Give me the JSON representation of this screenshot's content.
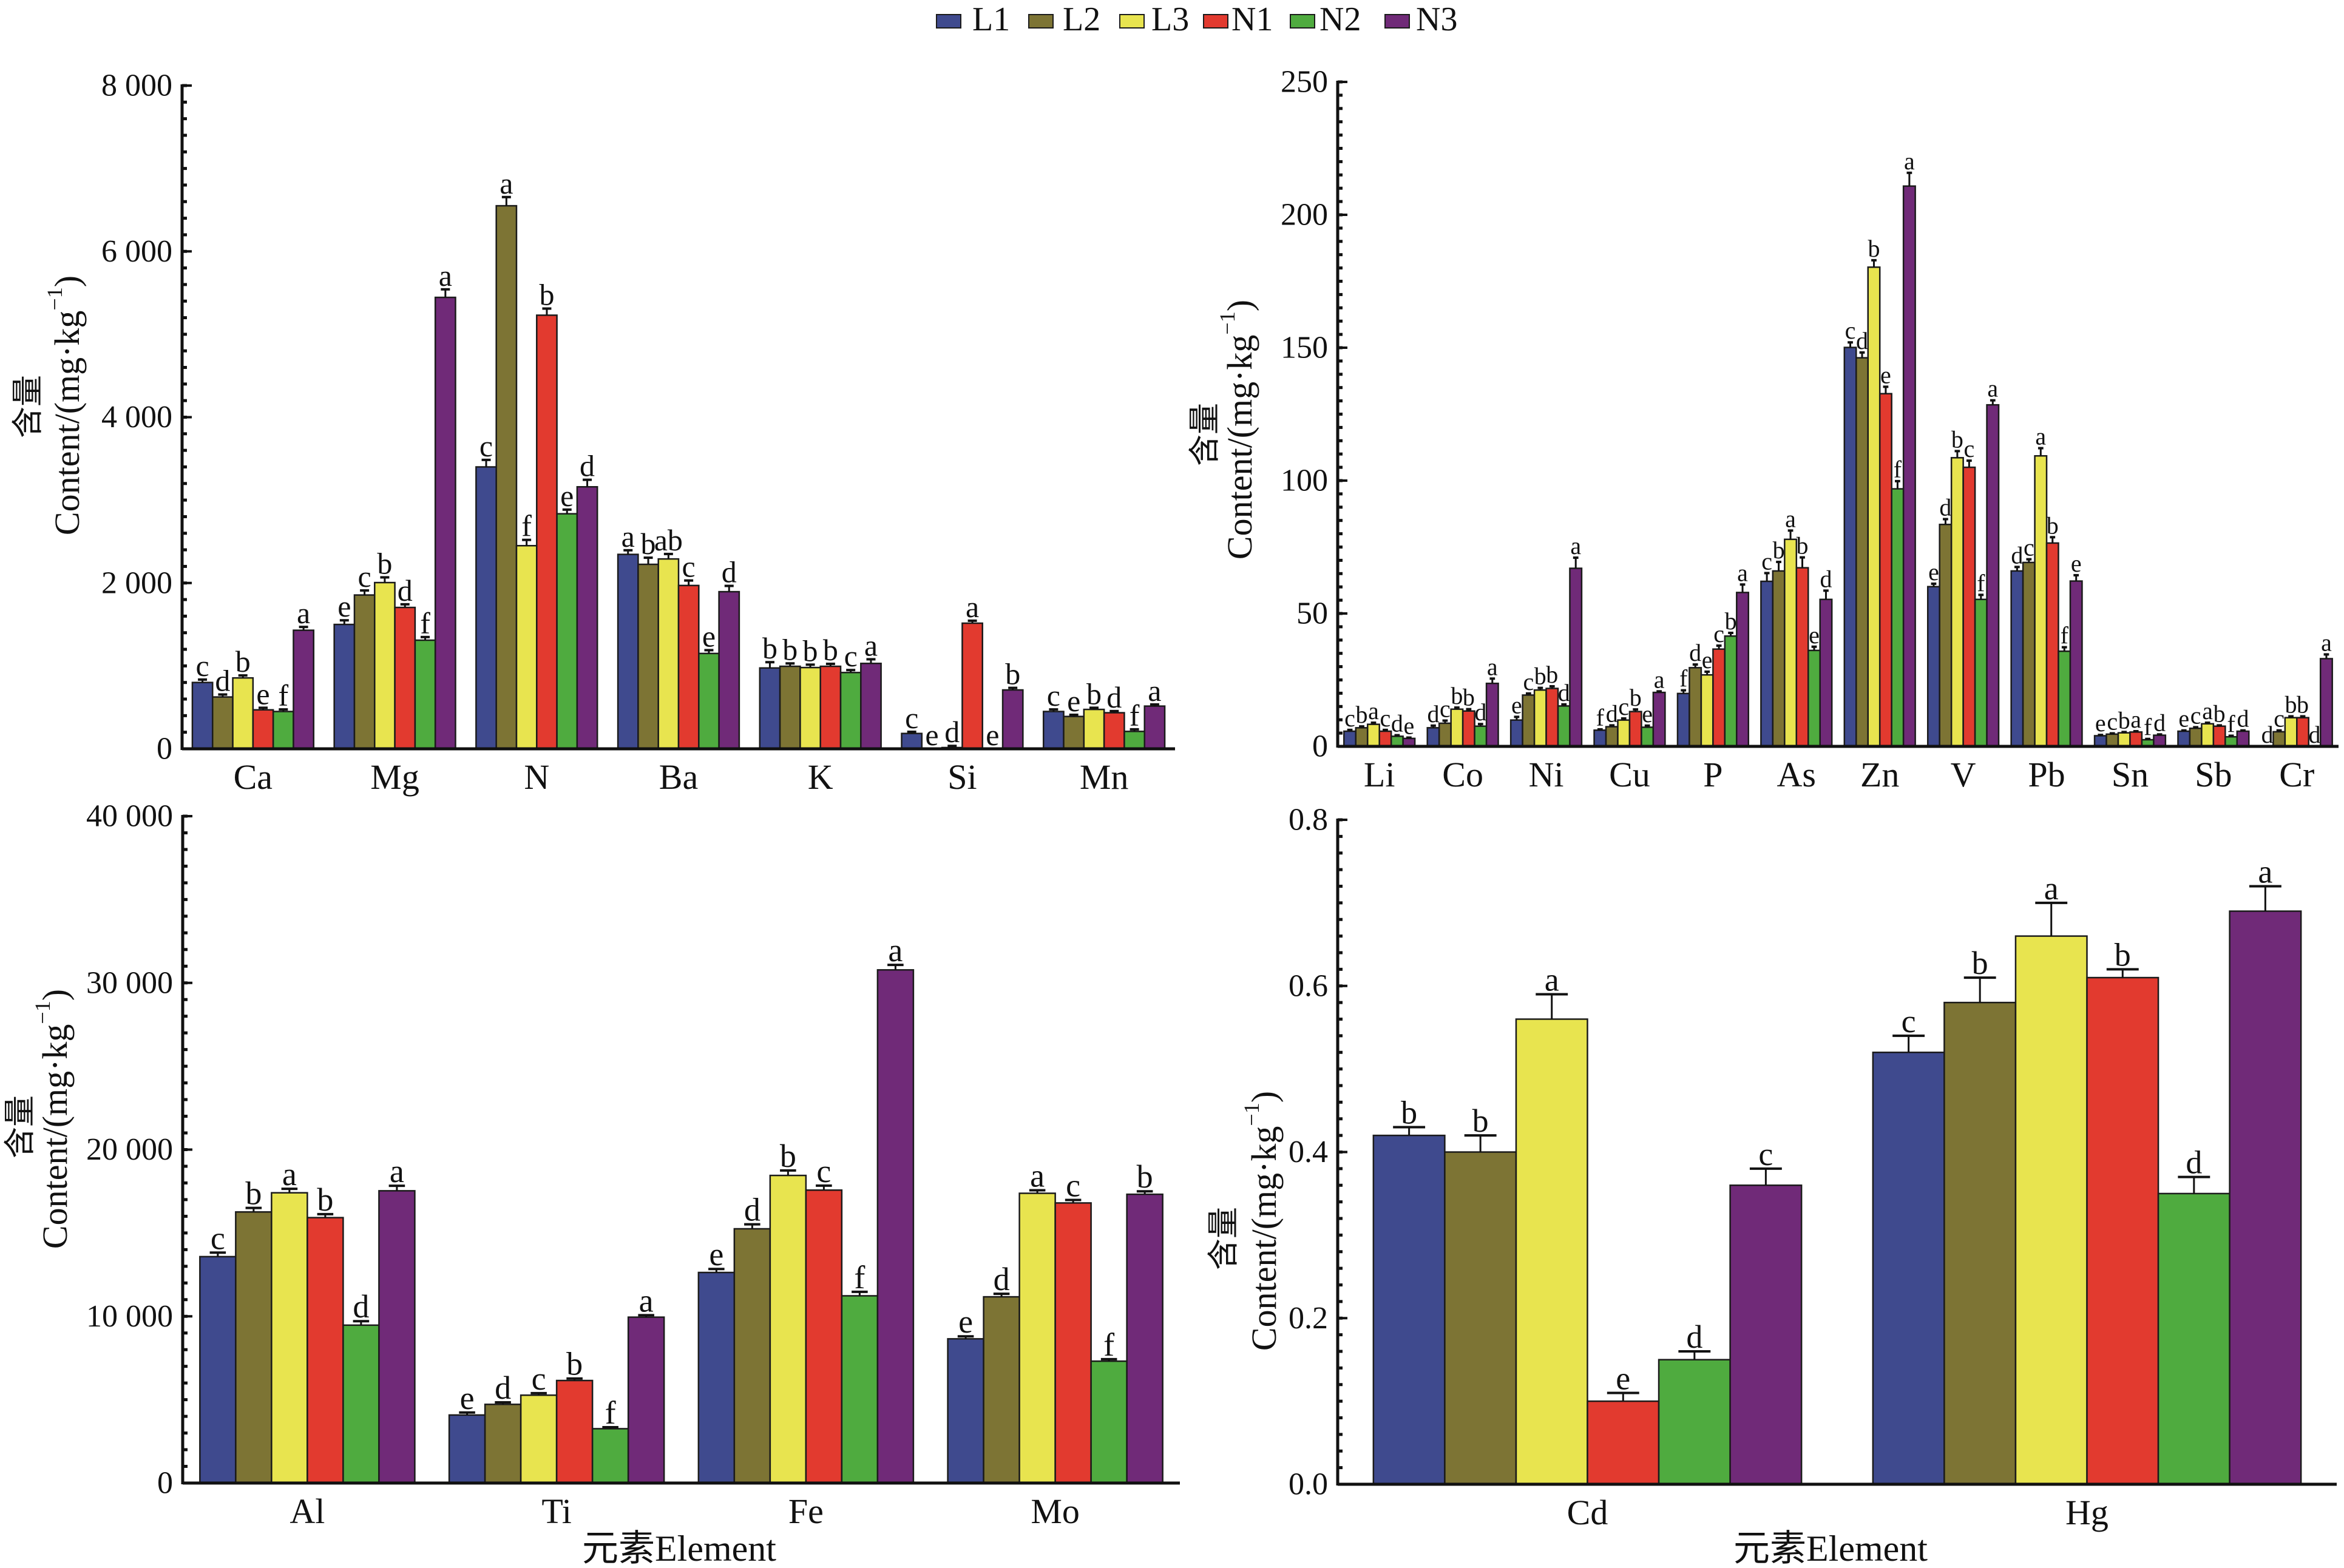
{
  "figure": {
    "legend_placement": "top-center",
    "legend": [
      {
        "name": "L1",
        "color": "#3f4a8e"
      },
      {
        "name": "L2",
        "color": "#7d7434"
      },
      {
        "name": "L3",
        "color": "#e8e44f"
      },
      {
        "name": "N1",
        "color": "#e23a2f"
      },
      {
        "name": "N2",
        "color": "#4fab3f"
      },
      {
        "name": "N3",
        "color": "#702a78"
      }
    ]
  },
  "chart_data": [
    {
      "type": "bar",
      "title": "",
      "ylabel_cn": "含量",
      "ylabel": {
        "base": "Content/(mg·kg",
        "superscript": "−1",
        "suffix": ")"
      },
      "xlabel": "",
      "ylim": [
        0,
        8000
      ],
      "yticks": [
        0,
        2000,
        4000,
        6000,
        8000
      ],
      "ytick_labels": [
        "0",
        "2 000",
        "4 000",
        "6 000",
        "8 000"
      ],
      "minor_tick_step": 200,
      "grid": false,
      "categories": [
        "Ca",
        "Mg",
        "N",
        "Ba",
        "K",
        "Si",
        "Mn"
      ],
      "series": [
        {
          "name": "L1",
          "values": [
            800,
            1500,
            3400,
            2345,
            975,
            185,
            450
          ],
          "errors": [
            35,
            50,
            85,
            50,
            70,
            20,
            25
          ],
          "labels": [
            "c",
            "e",
            "c",
            "a",
            "b",
            "c",
            "c"
          ]
        },
        {
          "name": "L2",
          "values": [
            625,
            1855,
            6550,
            2225,
            995,
            0,
            390
          ],
          "errors": [
            30,
            55,
            105,
            80,
            35,
            0,
            20
          ],
          "labels": [
            "d",
            "c",
            "a",
            "b",
            "b",
            "e",
            "e"
          ]
        },
        {
          "name": "L3",
          "values": [
            855,
            2005,
            2450,
            2290,
            980,
            15,
            475
          ],
          "errors": [
            30,
            63,
            70,
            60,
            35,
            20,
            20
          ],
          "labels": [
            "b",
            "b",
            "f",
            "ab",
            "b",
            "d",
            "b"
          ]
        },
        {
          "name": "N1",
          "values": [
            470,
            1705,
            5230,
            1970,
            995,
            1515,
            435
          ],
          "errors": [
            25,
            38,
            80,
            60,
            30,
            30,
            20
          ],
          "labels": [
            "e",
            "d",
            "b",
            "c",
            "b",
            "a",
            "d"
          ]
        },
        {
          "name": "N2",
          "values": [
            450,
            1310,
            2835,
            1150,
            920,
            0,
            210
          ],
          "errors": [
            25,
            38,
            50,
            40,
            30,
            0,
            25
          ],
          "labels": [
            "f",
            "f",
            "e",
            "e",
            "c",
            "e",
            "f"
          ]
        },
        {
          "name": "N3",
          "values": [
            1430,
            5445,
            3160,
            1895,
            1030,
            710,
            515
          ],
          "errors": [
            40,
            97,
            85,
            70,
            50,
            25,
            20
          ],
          "labels": [
            "a",
            "a",
            "d",
            "d",
            "a",
            "b",
            "a"
          ]
        }
      ]
    },
    {
      "type": "bar",
      "title": "",
      "ylabel_cn": "含量",
      "ylabel": {
        "base": "Content/(mg·kg",
        "superscript": "−1",
        "suffix": ")"
      },
      "xlabel": "",
      "ylim": [
        0,
        250
      ],
      "yticks": [
        0,
        50,
        100,
        150,
        200,
        250
      ],
      "ytick_labels": [
        "0",
        "50",
        "100",
        "150",
        "200",
        "250"
      ],
      "minor_tick_step": 5,
      "grid": false,
      "categories": [
        "Li",
        "Co",
        "Ni",
        "Cu",
        "P",
        "As",
        "Zn",
        "V",
        "Pb",
        "Sn",
        "Sb",
        "Cr"
      ],
      "series": [
        {
          "name": "L1",
          "values": [
            5.7,
            7.0,
            9.9,
            6.1,
            19.9,
            62.1,
            150.1,
            60.1,
            66.0,
            4.0,
            5.7,
            0
          ],
          "errors": [
            0.5,
            0.8,
            1.2,
            0.3,
            1.2,
            3.1,
            1.9,
            1.1,
            1.5,
            0.3,
            0.3,
            0
          ],
          "labels": [
            "c",
            "d",
            "e",
            "f",
            "f",
            "c",
            "c",
            "e",
            "d",
            "e",
            "e",
            "d"
          ]
        },
        {
          "name": "L2",
          "values": [
            7.0,
            8.7,
            19.3,
            7.4,
            29.6,
            66.0,
            146.2,
            83.5,
            69.2,
            4.6,
            6.8,
            5.5
          ],
          "errors": [
            0.5,
            1.0,
            0.6,
            0.5,
            1.2,
            3.4,
            2.0,
            2.0,
            1.2,
            0.3,
            0.4,
            0.5
          ],
          "labels": [
            "b",
            "c",
            "c",
            "d",
            "d",
            "b",
            "d",
            "d",
            "c",
            "c",
            "c",
            "c"
          ]
        },
        {
          "name": "L3",
          "values": [
            8.3,
            14.0,
            21.2,
            9.9,
            26.9,
            77.9,
            180.3,
            108.6,
            109.3,
            5.1,
            8.5,
            10.8
          ],
          "errors": [
            0.6,
            0.6,
            0.8,
            0.6,
            1.2,
            3.3,
            2.6,
            2.5,
            2.9,
            0.3,
            0.4,
            0.5
          ],
          "labels": [
            "a",
            "b",
            "b",
            "c",
            "e",
            "a",
            "b",
            "b",
            "a",
            "b",
            "a",
            "b"
          ]
        },
        {
          "name": "N1",
          "values": [
            5.7,
            13.3,
            21.8,
            13.1,
            36.6,
            67.2,
            132.7,
            105.0,
            76.5,
            5.4,
            7.6,
            10.8
          ],
          "errors": [
            0.5,
            0.7,
            0.8,
            0.8,
            1.3,
            3.9,
            2.6,
            2.5,
            2.2,
            0.3,
            0.3,
            0.5
          ],
          "labels": [
            "c",
            "b",
            "b",
            "b",
            "c",
            "b",
            "e",
            "c",
            "b",
            "a",
            "b",
            "b"
          ]
        },
        {
          "name": "N2",
          "values": [
            3.8,
            7.6,
            15.2,
            7.2,
            41.5,
            36.1,
            96.9,
            55.3,
            35.8,
            2.5,
            3.6,
            0
          ],
          "errors": [
            0.4,
            0.8,
            0.6,
            0.6,
            1.2,
            1.4,
            2.9,
            1.7,
            1.5,
            0.3,
            0.4,
            0
          ],
          "labels": [
            "d",
            "d",
            "d",
            "e",
            "b",
            "e",
            "f",
            "f",
            "f",
            "f",
            "f",
            "d"
          ]
        },
        {
          "name": "N3",
          "values": [
            3.0,
            23.7,
            67.0,
            20.3,
            57.9,
            55.3,
            210.8,
            128.5,
            62.2,
            4.2,
            5.7,
            33.0
          ],
          "errors": [
            0.3,
            1.8,
            4.0,
            0.4,
            3.0,
            3.3,
            5.0,
            1.7,
            2.2,
            0.3,
            0.3,
            1.6
          ],
          "labels": [
            "e",
            "a",
            "a",
            "a",
            "a",
            "d",
            "a",
            "a",
            "e",
            "d",
            "d",
            "a"
          ]
        }
      ]
    },
    {
      "type": "bar",
      "title": "",
      "ylabel_cn": "含量",
      "ylabel": {
        "base": "Content/(mg·kg",
        "superscript": "−1",
        "suffix": ")"
      },
      "xlabel": "元素Element",
      "ylim": [
        0,
        40000
      ],
      "yticks": [
        0,
        10000,
        20000,
        30000,
        40000
      ],
      "ytick_labels": [
        "0",
        "10 000",
        "20 000",
        "30 000",
        "40 000"
      ],
      "minor_tick_step": 1000,
      "grid": false,
      "categories": [
        "Al",
        "Ti",
        "Fe",
        "Mo"
      ],
      "series": [
        {
          "name": "L1",
          "values": [
            13580,
            4080,
            12630,
            8650
          ],
          "errors": [
            240,
            150,
            210,
            150
          ],
          "labels": [
            "c",
            "e",
            "e",
            "e"
          ]
        },
        {
          "name": "L2",
          "values": [
            16260,
            4720,
            15250,
            11170
          ],
          "errors": [
            240,
            120,
            270,
            180
          ],
          "labels": [
            "b",
            "d",
            "d",
            "d"
          ]
        },
        {
          "name": "L3",
          "values": [
            17410,
            5270,
            18450,
            17380
          ],
          "errors": [
            240,
            120,
            300,
            180
          ],
          "labels": [
            "a",
            "c",
            "b",
            "a"
          ]
        },
        {
          "name": "N1",
          "values": [
            15920,
            6150,
            17570,
            16800
          ],
          "errors": [
            210,
            120,
            270,
            180
          ],
          "labels": [
            "b",
            "b",
            "c",
            "c"
          ]
        },
        {
          "name": "N2",
          "values": [
            9470,
            3260,
            11230,
            7310
          ],
          "errors": [
            240,
            90,
            240,
            120
          ],
          "labels": [
            "d",
            "f",
            "f",
            "f"
          ]
        },
        {
          "name": "N3",
          "values": [
            17530,
            9950,
            30780,
            17320
          ],
          "errors": [
            300,
            120,
            300,
            180
          ],
          "labels": [
            "a",
            "a",
            "a",
            "b"
          ]
        }
      ]
    },
    {
      "type": "bar",
      "title": "",
      "ylabel_cn": "含量",
      "ylabel": {
        "base": "Content/(mg·kg",
        "superscript": "−1",
        "suffix": ")"
      },
      "xlabel": "元素Element",
      "ylim": [
        0,
        0.8
      ],
      "yticks": [
        0,
        0.2,
        0.4,
        0.6,
        0.8
      ],
      "ytick_labels": [
        "0.0",
        "0.2",
        "0.4",
        "0.6",
        "0.8"
      ],
      "minor_tick_step": 0.02,
      "grid": false,
      "categories": [
        "Cd",
        "Hg"
      ],
      "series": [
        {
          "name": "L1",
          "values": [
            0.42,
            0.52
          ],
          "errors": [
            0.01,
            0.02
          ],
          "labels": [
            "b",
            "c"
          ]
        },
        {
          "name": "L2",
          "values": [
            0.4,
            0.58
          ],
          "errors": [
            0.02,
            0.03
          ],
          "labels": [
            "b",
            "b"
          ]
        },
        {
          "name": "L3",
          "values": [
            0.56,
            0.66
          ],
          "errors": [
            0.03,
            0.04
          ],
          "labels": [
            "a",
            "a"
          ]
        },
        {
          "name": "N1",
          "values": [
            0.1,
            0.61
          ],
          "errors": [
            0.01,
            0.01
          ],
          "labels": [
            "e",
            "b"
          ]
        },
        {
          "name": "N2",
          "values": [
            0.15,
            0.35
          ],
          "errors": [
            0.01,
            0.02
          ],
          "labels": [
            "d",
            "d"
          ]
        },
        {
          "name": "N3",
          "values": [
            0.36,
            0.69
          ],
          "errors": [
            0.02,
            0.03
          ],
          "labels": [
            "c",
            "a"
          ]
        }
      ]
    }
  ]
}
